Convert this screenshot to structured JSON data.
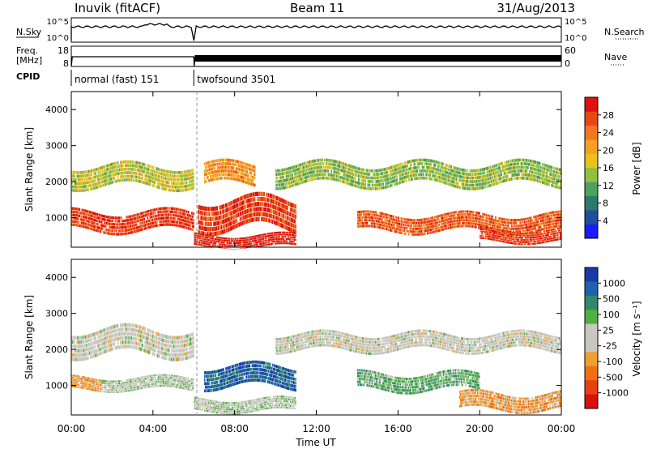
{
  "header": {
    "station": "Inuvik (fitACF)",
    "beam": "Beam 11",
    "date": "31/Aug/2013"
  },
  "status_panels": {
    "nsky_label": "N.Sky",
    "nsearch_label": "N.Search",
    "noise_ticks": [
      "10^5",
      "10^0"
    ],
    "freq_label_1": "Freq.",
    "freq_label_2": "[MHz]",
    "freq_ticks": [
      "18",
      "8"
    ],
    "nave_label": "Nave",
    "nave_ticks": [
      "60",
      "0"
    ],
    "cpid_label": "CPID",
    "cpid_segments": [
      {
        "name": "normal (fast) 151",
        "start_hour": 0,
        "end_hour": 6
      },
      {
        "name": "twofsound 3501",
        "start_hour": 6,
        "end_hour": 24
      }
    ]
  },
  "axes": {
    "x_label": "Time UT",
    "x_ticks": [
      "00:00",
      "04:00",
      "08:00",
      "12:00",
      "16:00",
      "20:00",
      "00:00"
    ],
    "y_label": "Slant Range [km]",
    "y_ticks": [
      "1000",
      "2000",
      "3000",
      "4000"
    ]
  },
  "power_colorbar": {
    "label": "Power [dB]",
    "ticks": [
      "4",
      "8",
      "12",
      "16",
      "20",
      "24",
      "28"
    ],
    "colors": [
      "#1a1aff",
      "#1f4e9a",
      "#2b7a6a",
      "#4f9f60",
      "#8fc040",
      "#e8c020",
      "#f5a020",
      "#f07820",
      "#e84818",
      "#e01010"
    ]
  },
  "velocity_colorbar": {
    "label": "Velocity [m s⁻¹]",
    "ticks": [
      "1000",
      "500",
      "100",
      "25",
      "-25",
      "-100",
      "-500",
      "-1000"
    ],
    "colors": [
      "#1a3aa8",
      "#2060b0",
      "#2f8a6a",
      "#50b040",
      "#c8c8c0",
      "#c8c8c0",
      "#f0a030",
      "#f07010",
      "#e84010",
      "#d81010"
    ]
  },
  "chart_data": [
    {
      "type": "heatmap",
      "title": "Power",
      "x_range_hours": [
        0,
        24
      ],
      "ylim": [
        180,
        4500
      ],
      "colorbar_range_db": [
        0,
        32
      ],
      "echo_bands": [
        {
          "start_hour": 0,
          "end_hour": 6,
          "range_center_km": 2150,
          "range_width_km": 500,
          "value_db": 16
        },
        {
          "start_hour": 0,
          "end_hour": 6,
          "range_center_km": 900,
          "range_width_km": 450,
          "value_db": 28
        },
        {
          "start_hour": 6.2,
          "end_hour": 11,
          "range_center_km": 1100,
          "range_width_km": 700,
          "value_db": 28
        },
        {
          "start_hour": 6.5,
          "end_hour": 9,
          "range_center_km": 2200,
          "range_width_km": 500,
          "value_db": 22
        },
        {
          "start_hour": 6,
          "end_hour": 11,
          "range_center_km": 350,
          "range_width_km": 300,
          "value_db": 30
        },
        {
          "start_hour": 10,
          "end_hour": 24,
          "range_center_km": 2200,
          "range_width_km": 500,
          "value_db": 14
        },
        {
          "start_hour": 14,
          "end_hour": 24,
          "range_center_km": 850,
          "range_width_km": 400,
          "value_db": 26
        },
        {
          "start_hour": 20,
          "end_hour": 24,
          "range_center_km": 500,
          "range_width_km": 300,
          "value_db": 28
        }
      ]
    },
    {
      "type": "heatmap",
      "title": "Velocity",
      "x_range_hours": [
        0,
        24
      ],
      "ylim": [
        180,
        4500
      ],
      "colorbar_range_ms": [
        -1000,
        1000
      ],
      "echo_bands": [
        {
          "start_hour": 0,
          "end_hour": 6,
          "range_center_km": 2200,
          "range_width_km": 600,
          "value_ms": 0
        },
        {
          "start_hour": 0,
          "end_hour": 1.5,
          "range_center_km": 1050,
          "range_width_km": 300,
          "value_ms": -300
        },
        {
          "start_hour": 1.5,
          "end_hour": 6,
          "range_center_km": 1050,
          "range_width_km": 300,
          "value_ms": 80
        },
        {
          "start_hour": 6.5,
          "end_hour": 11,
          "range_center_km": 1250,
          "range_width_km": 500,
          "value_ms": 700
        },
        {
          "start_hour": 6,
          "end_hour": 11,
          "range_center_km": 450,
          "range_width_km": 300,
          "value_ms": 60
        },
        {
          "start_hour": 10,
          "end_hour": 24,
          "range_center_km": 2200,
          "range_width_km": 400,
          "value_ms": 0
        },
        {
          "start_hour": 14,
          "end_hour": 20,
          "range_center_km": 1100,
          "range_width_km": 400,
          "value_ms": 300
        },
        {
          "start_hour": 19,
          "end_hour": 24,
          "range_center_km": 550,
          "range_width_km": 400,
          "value_ms": -300
        }
      ]
    }
  ]
}
